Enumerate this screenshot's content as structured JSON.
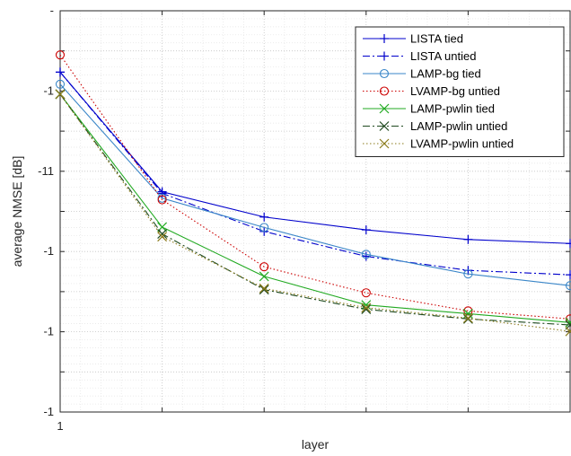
{
  "chart_data": {
    "type": "line",
    "xlabel": "layer",
    "ylabel": "average NMSE [dB]",
    "x": [
      1,
      2,
      3,
      4,
      5,
      6
    ],
    "xtick_labels": [
      "1",
      "",
      "",
      "",
      "",
      ""
    ],
    "ylim": [
      0,
      10
    ],
    "yticks": [
      0,
      1,
      2,
      3,
      4,
      5,
      6,
      7,
      8,
      9,
      10
    ],
    "ytick_labels": [
      "-1",
      "",
      "-1",
      "",
      "-1",
      "",
      "-11",
      "",
      "-1",
      "",
      "-"
    ],
    "grid": true,
    "legend_position": "top-right",
    "series": [
      {
        "name": "LISTA tied",
        "color": "#0000cc",
        "dash": "solid",
        "marker": "plus",
        "values": [
          8.47,
          5.49,
          4.86,
          4.54,
          4.3,
          4.2
        ]
      },
      {
        "name": "LISTA untied",
        "color": "#0000cc",
        "dash": "dashdot",
        "marker": "plus",
        "values": [
          8.47,
          5.45,
          4.5,
          3.88,
          3.53,
          3.42
        ]
      },
      {
        "name": "LAMP-bg tied",
        "color": "#3a86c8",
        "dash": "solid",
        "marker": "circle",
        "values": [
          8.17,
          5.33,
          4.6,
          3.93,
          3.44,
          3.15
        ]
      },
      {
        "name": "LVAMP-bg untied",
        "color": "#cc0000",
        "dash": "dotted",
        "marker": "circle",
        "values": [
          8.9,
          5.29,
          3.62,
          2.97,
          2.52,
          2.32
        ]
      },
      {
        "name": "LAMP-pwlin tied",
        "color": "#22aa22",
        "dash": "solid",
        "marker": "x",
        "values": [
          7.92,
          4.61,
          3.38,
          2.67,
          2.45,
          2.23
        ]
      },
      {
        "name": "LAMP-pwlin untied",
        "color": "#1f4a1f",
        "dash": "dashdot",
        "marker": "x",
        "values": [
          7.92,
          4.44,
          3.05,
          2.56,
          2.32,
          2.17
        ]
      },
      {
        "name": "LVAMP-pwlin untied",
        "color": "#8a7a1a",
        "dash": "dotted",
        "marker": "x",
        "values": [
          7.92,
          4.37,
          3.08,
          2.6,
          2.34,
          2.01
        ]
      }
    ]
  }
}
